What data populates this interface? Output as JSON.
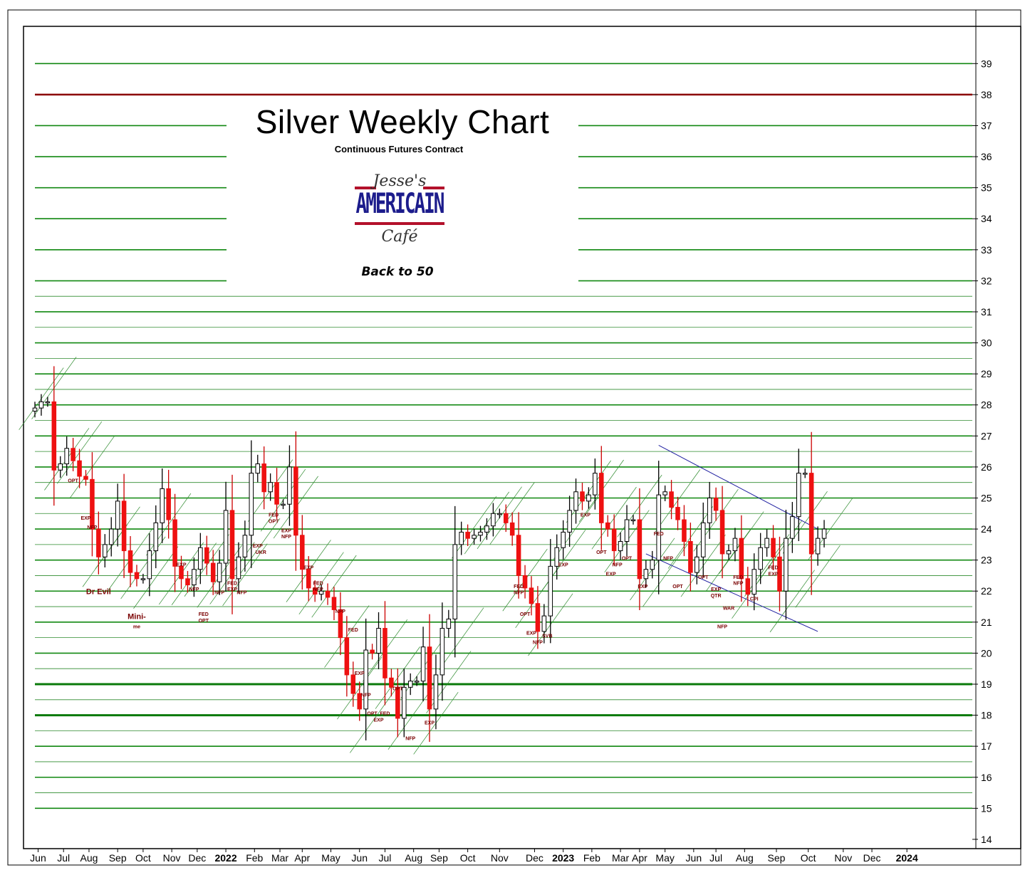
{
  "chart_data": {
    "type": "candlestick",
    "title": "Silver Weekly Chart",
    "subtitle": "Continuous Futures Contract",
    "note": "Back to 50",
    "logo": {
      "line1": "Jesse's",
      "line2": "AMERICAIN",
      "line3": "Café"
    },
    "ylim": [
      13.7,
      40.2
    ],
    "y_ticks": [
      14,
      15,
      16,
      17,
      18,
      19,
      20,
      21,
      22,
      23,
      24,
      25,
      26,
      27,
      28,
      29,
      30,
      31,
      32,
      33,
      34,
      35,
      36,
      37,
      38,
      39
    ],
    "y_tick_labels": [
      "14",
      "15",
      "16",
      "17",
      "18",
      "19",
      "20",
      "21",
      "22",
      "23",
      "24",
      "25",
      "26",
      "27",
      "28",
      "29",
      "30",
      "31",
      "32",
      "33",
      "34",
      "35",
      "36",
      "37",
      "38",
      "39"
    ],
    "x_labels": [
      {
        "w": 0.5,
        "label": "Jun",
        "bold": false
      },
      {
        "w": 4.5,
        "label": "Jul",
        "bold": false
      },
      {
        "w": 8.5,
        "label": "Aug",
        "bold": false
      },
      {
        "w": 13,
        "label": "Sep",
        "bold": false
      },
      {
        "w": 17,
        "label": "Oct",
        "bold": false
      },
      {
        "w": 21.5,
        "label": "Nov",
        "bold": false
      },
      {
        "w": 25.5,
        "label": "Dec",
        "bold": false
      },
      {
        "w": 30,
        "label": "2022",
        "bold": true
      },
      {
        "w": 34.5,
        "label": "Feb",
        "bold": false
      },
      {
        "w": 38.5,
        "label": "Mar",
        "bold": false
      },
      {
        "w": 42,
        "label": "Apr",
        "bold": false
      },
      {
        "w": 46.5,
        "label": "May",
        "bold": false
      },
      {
        "w": 51,
        "label": "Jun",
        "bold": false
      },
      {
        "w": 55,
        "label": "Jul",
        "bold": false
      },
      {
        "w": 59.5,
        "label": "Aug",
        "bold": false
      },
      {
        "w": 63.5,
        "label": "Sep",
        "bold": false
      },
      {
        "w": 68,
        "label": "Oct",
        "bold": false
      },
      {
        "w": 73,
        "label": "Nov",
        "bold": false
      },
      {
        "w": 78.5,
        "label": "Dec",
        "bold": false
      },
      {
        "w": 83,
        "label": "2023",
        "bold": true
      },
      {
        "w": 87.5,
        "label": "Feb",
        "bold": false
      },
      {
        "w": 92,
        "label": "Mar",
        "bold": false
      },
      {
        "w": 95,
        "label": "Apr",
        "bold": false
      },
      {
        "w": 99,
        "label": "May",
        "bold": false
      },
      {
        "w": 103.5,
        "label": "Jun",
        "bold": false
      },
      {
        "w": 107,
        "label": "Jul",
        "bold": false
      },
      {
        "w": 111.5,
        "label": "Aug",
        "bold": false
      },
      {
        "w": 116.5,
        "label": "Sep",
        "bold": false
      },
      {
        "w": 121.5,
        "label": "Oct",
        "bold": false
      },
      {
        "w": 127,
        "label": "Nov",
        "bold": false
      },
      {
        "w": 131.5,
        "label": "Dec",
        "bold": false
      },
      {
        "w": 137,
        "label": "2024",
        "bold": true
      }
    ],
    "horizontal_levels": [
      {
        "y": 39,
        "style": "green"
      },
      {
        "y": 38,
        "style": "red"
      },
      {
        "y": 37,
        "style": "green"
      },
      {
        "y": 36,
        "style": "green"
      },
      {
        "y": 35,
        "style": "green"
      },
      {
        "y": 34,
        "style": "green"
      },
      {
        "y": 33,
        "style": "green"
      },
      {
        "y": 32,
        "style": "green"
      },
      {
        "y": 31.5,
        "style": "thin"
      },
      {
        "y": 31,
        "style": "green"
      },
      {
        "y": 30.5,
        "style": "thin"
      },
      {
        "y": 30,
        "style": "green"
      },
      {
        "y": 29.5,
        "style": "thin"
      },
      {
        "y": 29,
        "style": "green"
      },
      {
        "y": 28.5,
        "style": "thin"
      },
      {
        "y": 28,
        "style": "green"
      },
      {
        "y": 27.5,
        "style": "thin"
      },
      {
        "y": 27,
        "style": "green"
      },
      {
        "y": 26.5,
        "style": "thin"
      },
      {
        "y": 26,
        "style": "green"
      },
      {
        "y": 25.5,
        "style": "thin"
      },
      {
        "y": 25,
        "style": "green"
      },
      {
        "y": 24.5,
        "style": "thin"
      },
      {
        "y": 24,
        "style": "green"
      },
      {
        "y": 23.5,
        "style": "thin"
      },
      {
        "y": 23,
        "style": "green"
      },
      {
        "y": 22.5,
        "style": "thin"
      },
      {
        "y": 22,
        "style": "green"
      },
      {
        "y": 21.5,
        "style": "thin"
      },
      {
        "y": 21,
        "style": "green"
      },
      {
        "y": 20.5,
        "style": "thin"
      },
      {
        "y": 20,
        "style": "green"
      },
      {
        "y": 19.5,
        "style": "thin"
      },
      {
        "y": 19,
        "style": "bold"
      },
      {
        "y": 18.5,
        "style": "thin"
      },
      {
        "y": 18,
        "style": "bold"
      },
      {
        "y": 17.5,
        "style": "thin"
      },
      {
        "y": 17,
        "style": "green"
      },
      {
        "y": 16.5,
        "style": "thin"
      },
      {
        "y": 16,
        "style": "green"
      },
      {
        "y": 15.5,
        "style": "thin"
      },
      {
        "y": 15,
        "style": "green"
      }
    ],
    "closes": [
      27.9,
      28.1,
      28.1,
      25.9,
      26.1,
      26.6,
      26.2,
      25.7,
      25.6,
      24.0,
      23.1,
      23.5,
      24.0,
      24.9,
      23.3,
      22.6,
      22.4,
      22.4,
      23.3,
      24.2,
      25.3,
      24.3,
      22.8,
      22.4,
      22.2,
      22.7,
      23.4,
      22.9,
      22.3,
      22.9,
      24.6,
      22.4,
      23.1,
      23.8,
      25.8,
      26.1,
      25.2,
      25.5,
      24.8,
      24.8,
      26.0,
      23.8,
      22.7,
      22.1,
      21.9,
      22.0,
      21.8,
      21.4,
      20.5,
      19.3,
      18.7,
      18.2,
      20.1,
      20.0,
      20.8,
      19.2,
      18.9,
      17.9,
      18.9,
      19.1,
      19.1,
      20.2,
      18.2,
      19.3,
      20.8,
      21.1,
      23.5,
      23.9,
      23.7,
      23.8,
      23.9,
      24.1,
      24.5,
      24.5,
      24.2,
      23.8,
      22.5,
      22.1,
      21.6,
      20.7,
      21.2,
      22.8,
      23.4,
      23.9,
      24.6,
      25.2,
      24.9,
      25.1,
      25.8,
      24.2,
      24.0,
      23.3,
      23.6,
      24.3,
      24.3,
      22.4,
      22.7,
      23.0,
      25.1,
      25.2,
      24.7,
      24.3,
      23.6,
      22.6,
      23.1,
      24.2,
      25.0,
      24.6,
      23.2,
      23.3,
      23.7,
      22.4,
      21.9,
      22.7,
      23.4,
      23.7,
      23.1,
      22.0,
      23.7,
      24.4,
      25.8,
      25.8,
      23.2,
      23.7,
      24.0
    ],
    "y_open": 27.8,
    "x_range_weeks": [
      0,
      140
    ],
    "channels": [
      {
        "from": [
          98,
          26.7
        ],
        "to": [
          123,
          24.0
        ]
      },
      {
        "from": [
          96,
          23.2
        ],
        "to": [
          123,
          20.7
        ]
      }
    ],
    "annotations": [
      {
        "w": 6,
        "y": 25.5,
        "text": "OPT"
      },
      {
        "w": 8,
        "y": 24.3,
        "text": "EXP"
      },
      {
        "w": 9,
        "y": 24.0,
        "text": "NFP"
      },
      {
        "w": 10,
        "y": 21.9,
        "text": "Dr Evil"
      },
      {
        "w": 16,
        "y": 21.1,
        "text": "Mini-"
      },
      {
        "w": 16,
        "y": 20.8,
        "text": "me"
      },
      {
        "w": 23,
        "y": 22.8,
        "text": "EXP"
      },
      {
        "w": 25,
        "y": 22.0,
        "text": "NFP"
      },
      {
        "w": 26.5,
        "y": 21.2,
        "text": "FED"
      },
      {
        "w": 26.5,
        "y": 21.0,
        "text": "OPT"
      },
      {
        "w": 29,
        "y": 21.9,
        "text": "NFP"
      },
      {
        "w": 31,
        "y": 22.2,
        "text": "FED"
      },
      {
        "w": 31,
        "y": 22.0,
        "text": "EXP"
      },
      {
        "w": 32.5,
        "y": 21.9,
        "text": "NFP"
      },
      {
        "w": 35,
        "y": 23.4,
        "text": "EXP"
      },
      {
        "w": 35.5,
        "y": 23.2,
        "text": "UKR"
      },
      {
        "w": 37.5,
        "y": 24.4,
        "text": "FED"
      },
      {
        "w": 37.5,
        "y": 24.2,
        "text": "OPT"
      },
      {
        "w": 39.5,
        "y": 23.9,
        "text": "EXP"
      },
      {
        "w": 39.5,
        "y": 23.7,
        "text": "NFP"
      },
      {
        "w": 43,
        "y": 22.7,
        "text": "EXP"
      },
      {
        "w": 44.5,
        "y": 22.2,
        "text": "FED"
      },
      {
        "w": 44.5,
        "y": 22.0,
        "text": "NFP"
      },
      {
        "w": 48,
        "y": 21.3,
        "text": "NFP"
      },
      {
        "w": 50,
        "y": 20.7,
        "text": "FED"
      },
      {
        "w": 51,
        "y": 19.3,
        "text": "EXP"
      },
      {
        "w": 52,
        "y": 18.6,
        "text": "NFP"
      },
      {
        "w": 53,
        "y": 18.0,
        "text": "OPT"
      },
      {
        "w": 54,
        "y": 17.8,
        "text": "EXP"
      },
      {
        "w": 55,
        "y": 18.0,
        "text": "FED"
      },
      {
        "w": 57,
        "y": 18.8,
        "text": "OPT"
      },
      {
        "w": 59,
        "y": 17.2,
        "text": "NFP"
      },
      {
        "w": 62,
        "y": 17.7,
        "text": "EXP"
      },
      {
        "w": 76,
        "y": 22.1,
        "text": "FED"
      },
      {
        "w": 76,
        "y": 21.9,
        "text": "NFP"
      },
      {
        "w": 77,
        "y": 21.2,
        "text": "OPT"
      },
      {
        "w": 78,
        "y": 20.6,
        "text": "EXP"
      },
      {
        "w": 79,
        "y": 20.3,
        "text": "NFP"
      },
      {
        "w": 80.5,
        "y": 20.5,
        "text": "SVB"
      },
      {
        "w": 83,
        "y": 22.8,
        "text": "EXP"
      },
      {
        "w": 86.5,
        "y": 24.4,
        "text": "EXP"
      },
      {
        "w": 89,
        "y": 23.2,
        "text": "OPT"
      },
      {
        "w": 90.5,
        "y": 22.5,
        "text": "EXP"
      },
      {
        "w": 91.5,
        "y": 22.8,
        "text": "NFP"
      },
      {
        "w": 93,
        "y": 23.0,
        "text": "OPT"
      },
      {
        "w": 95.5,
        "y": 22.1,
        "text": "EXP"
      },
      {
        "w": 98,
        "y": 23.8,
        "text": "FED"
      },
      {
        "w": 99.5,
        "y": 23.0,
        "text": "NFP"
      },
      {
        "w": 101,
        "y": 22.1,
        "text": "OPT"
      },
      {
        "w": 105,
        "y": 22.4,
        "text": "OPT"
      },
      {
        "w": 107,
        "y": 22.0,
        "text": "EXP"
      },
      {
        "w": 107,
        "y": 21.8,
        "text": "QTR"
      },
      {
        "w": 109,
        "y": 21.4,
        "text": "WAR"
      },
      {
        "w": 108,
        "y": 20.8,
        "text": "NFP"
      },
      {
        "w": 110.5,
        "y": 22.4,
        "text": "FED"
      },
      {
        "w": 110.5,
        "y": 22.2,
        "text": "NFP"
      },
      {
        "w": 113,
        "y": 21.7,
        "text": "CPI"
      },
      {
        "w": 116,
        "y": 22.7,
        "text": "FED"
      },
      {
        "w": 116,
        "y": 22.5,
        "text": "EXP"
      }
    ]
  }
}
